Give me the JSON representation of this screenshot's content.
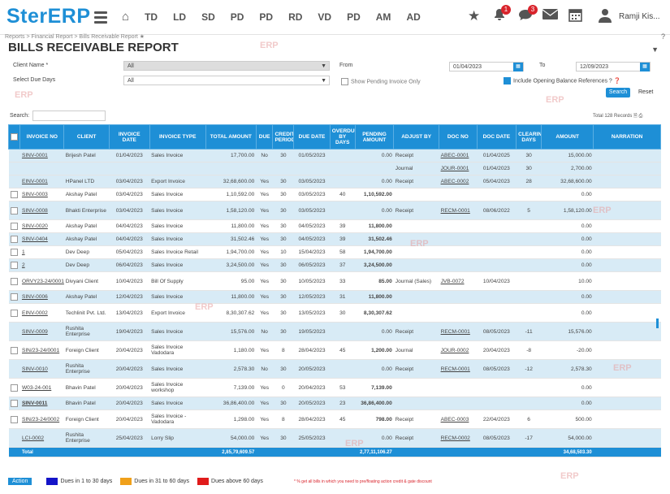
{
  "app": {
    "logo": "SterERP",
    "user": "Ramji Kis..."
  },
  "nav": [
    "TD",
    "LD",
    "SD",
    "PD",
    "PD",
    "RD",
    "VD",
    "PD",
    "AM",
    "AD"
  ],
  "notifications": {
    "bell": "1",
    "chat": "3"
  },
  "breadcrumb": "Reports  >  Financial Report  >  Bills Receivable Report  ★",
  "page_title": "BILLS RECEIVABLE REPORT",
  "filters": {
    "client_label": "Client Name *",
    "client_value": "All",
    "due_label": "Select Due Days",
    "due_value": "All",
    "from_label": "From",
    "from_value": "01/04/2023",
    "to_label": "To",
    "to_value": "12/09/2023",
    "pending_label": "Show Pending Invoice Only",
    "opening_label": "Include Opening Balance References ?",
    "search_btn": "Search",
    "reset_btn": "Reset"
  },
  "search_label": "Search:",
  "records": "Total 128 Records",
  "columns": [
    "INVOICE NO",
    "CLIENT",
    "INVOICE DATE",
    "INVOICE TYPE",
    "TOTAL AMOUNT",
    "DUE",
    "CREDIT PERIOD",
    "DUE DATE",
    "OVERDUE BY DAYS",
    "PENDING AMOUNT",
    "ADJUST BY",
    "DOC NO",
    "DOC DATE",
    "CLEARING DAYS",
    "AMOUNT",
    "NARRATION"
  ],
  "rows": [
    [
      "SINV-0001",
      "Brijesh Patel",
      "01/04/2023",
      "Sales Invoice",
      "17,700.00",
      "No",
      "30",
      "01/05/2023",
      "",
      "0.00",
      "Receipt",
      "ABEC-0001",
      "01/04/2025",
      "30",
      "15,000.00",
      ""
    ],
    [
      "",
      "",
      "",
      "",
      "",
      "",
      "",
      "",
      "",
      "",
      "Journal",
      "JOUR-0001",
      "01/04/2023",
      "30",
      "2,700.00",
      ""
    ],
    [
      "EINV-0001",
      "HPanel LTD",
      "03/04/2023",
      "Export Invoice",
      "32,68,600.00",
      "Yes",
      "30",
      "03/05/2023",
      "",
      "0.00",
      "Receipt",
      "ABEC-0002",
      "05/04/2023",
      "28",
      "32,68,600.00",
      ""
    ],
    [
      "SINV-0003",
      "Akshay Patel",
      "03/04/2023",
      "Sales Invoice",
      "1,10,592.00",
      "Yes",
      "30",
      "03/05/2023",
      "40",
      "1,10,592.00",
      "",
      "",
      "",
      "",
      "0.00",
      ""
    ],
    [
      "SINV-0008",
      "Bhakti Enterprise",
      "03/04/2023",
      "Sales Invoice",
      "1,58,120.00",
      "Yes",
      "30",
      "03/05/2023",
      "",
      "0.00",
      "Receipt",
      "RECM-0001",
      "08/06/2022",
      "5",
      "1,58,120.00",
      ""
    ],
    [
      "SINV-0020",
      "Akshay Patel",
      "04/04/2023",
      "Sales Invoice",
      "11,800.00",
      "Yes",
      "30",
      "04/05/2023",
      "39",
      "11,800.00",
      "",
      "",
      "",
      "",
      "0.00",
      ""
    ],
    [
      "SINV-0404",
      "Akshay Patel",
      "04/04/2023",
      "Sales Invoice",
      "31,502.46",
      "Yes",
      "30",
      "04/05/2023",
      "39",
      "31,502.46",
      "",
      "",
      "",
      "",
      "0.00",
      ""
    ],
    [
      "1",
      "Dev Deep",
      "05/04/2023",
      "Sales Invoice Retail",
      "1,94,700.00",
      "Yes",
      "10",
      "15/04/2023",
      "58",
      "1,94,700.00",
      "",
      "",
      "",
      "",
      "0.00",
      ""
    ],
    [
      "2",
      "Dev Deep",
      "06/04/2023",
      "Sales Invoice",
      "3,24,500.00",
      "Yes",
      "30",
      "06/05/2023",
      "37",
      "3,24,500.00",
      "",
      "",
      "",
      "",
      "0.00",
      ""
    ],
    [
      "ORVY23-24/0001",
      "Divyani Client",
      "10/04/2023",
      "Bill Of Supply",
      "95.00",
      "Yes",
      "30",
      "10/05/2023",
      "33",
      "85.00",
      "Journal (Sales)",
      "JVB-0072",
      "10/04/2023",
      "",
      "10.00",
      ""
    ],
    [
      "SINV-0006",
      "Akshay Patel",
      "12/04/2023",
      "Sales Invoice",
      "11,800.00",
      "Yes",
      "30",
      "12/05/2023",
      "31",
      "11,800.00",
      "",
      "",
      "",
      "",
      "0.00",
      ""
    ],
    [
      "EINV-0002",
      "Techlinit Pvt. Ltd.",
      "13/04/2023",
      "Export Invoice",
      "8,30,307.62",
      "Yes",
      "30",
      "13/05/2023",
      "30",
      "8,30,307.62",
      "",
      "",
      "",
      "",
      "0.00",
      ""
    ],
    [
      "SINV-0009",
      "Rushita Enterprise",
      "19/04/2023",
      "Sales Invoice",
      "15,576.00",
      "No",
      "30",
      "19/05/2023",
      "",
      "0.00",
      "Receipt",
      "RECM-0001",
      "08/05/2023",
      "-11",
      "15,576.00",
      ""
    ],
    [
      "SIN/23-24/0001",
      "Foreign Client",
      "20/04/2023",
      "Sales Invoice Vadodara",
      "1,180.00",
      "Yes",
      "8",
      "28/04/2023",
      "45",
      "1,200.00",
      "Journal",
      "JOUR-0002",
      "20/04/2023",
      "-8",
      "-20.00",
      ""
    ],
    [
      "SINV-0010",
      "Rushita Enterprise",
      "20/04/2023",
      "Sales Invoice",
      "2,578.30",
      "No",
      "30",
      "20/05/2023",
      "",
      "0.00",
      "Receipt",
      "RECM-0001",
      "08/05/2023",
      "-12",
      "2,578.30",
      ""
    ],
    [
      "W03-24-001",
      "Bhavin Patel",
      "20/04/2023",
      "Sales Invoice workshop",
      "7,139.00",
      "Yes",
      "0",
      "20/04/2023",
      "53",
      "7,139.00",
      "",
      "",
      "",
      "",
      "0.00",
      ""
    ],
    [
      "SINV-0011",
      "Bhavin Patel",
      "20/04/2023",
      "Sales Invoice",
      "36,86,400.00",
      "Yes",
      "30",
      "20/05/2023",
      "23",
      "36,86,400.00",
      "",
      "",
      "",
      "",
      "0.00",
      ""
    ],
    [
      "SIN/23-24/0002",
      "Foreign Client",
      "20/04/2023",
      "Sales Invoice - Vadodara",
      "1,298.00",
      "Yes",
      "8",
      "28/04/2023",
      "45",
      "798.00",
      "Receipt",
      "ABEC-0003",
      "22/04/2023",
      "6",
      "500.00",
      ""
    ],
    [
      "LCI-0002",
      "Rushita Enterprise",
      "25/04/2023",
      "Lorry Slip",
      "54,000.00",
      "Yes",
      "30",
      "25/05/2023",
      "",
      "0.00",
      "Receipt",
      "RECM-0002",
      "08/05/2023",
      "-17",
      "54,000.00",
      ""
    ]
  ],
  "totals": {
    "label": "Total",
    "total_amount": "2,85,79,609.57",
    "pending": "2,77,11,106.27",
    "amount": "34,68,503.30"
  },
  "footer": {
    "action": "Action",
    "legend": [
      {
        "label": "Dues in 1 to 30 days",
        "color": "#1414c8"
      },
      {
        "label": "Dues in 31 to 60 days",
        "color": "#f0a01a"
      },
      {
        "label": "Dues above 60 days",
        "color": "#e01b1b"
      }
    ],
    "note": "* % get all bills in which you need to pre/floating action credit & gate discount"
  },
  "watermark": "ERP"
}
